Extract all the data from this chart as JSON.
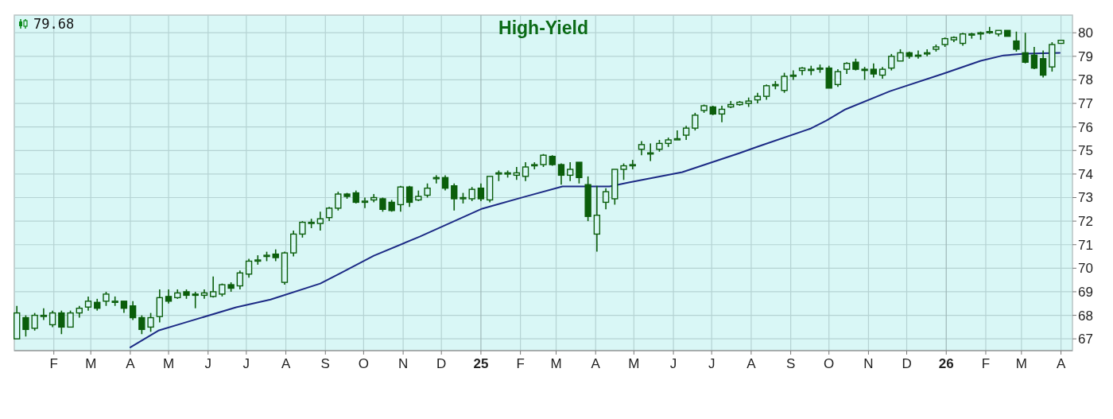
{
  "chart_data": {
    "type": "candlestick",
    "title": "High-Yield",
    "annotations": [
      "79.68"
    ],
    "color": "#0b5e0b",
    "grid": true,
    "xlim": [
      "2024-01-01",
      "2026-04-10"
    ],
    "ylim": [
      66.5,
      80.75
    ],
    "yticks": [
      67,
      68,
      69,
      70,
      71,
      72,
      73,
      74,
      75,
      76,
      77,
      78,
      79,
      80
    ],
    "xticks": [
      {
        "value": "2024-02",
        "label": "F"
      },
      {
        "value": "2024-03",
        "label": "M"
      },
      {
        "value": "2024-04",
        "label": "A"
      },
      {
        "value": "2024-05",
        "label": "M"
      },
      {
        "value": "2024-06",
        "label": "J"
      },
      {
        "value": "2024-07",
        "label": "J"
      },
      {
        "value": "2024-08",
        "label": "A"
      },
      {
        "value": "2024-09",
        "label": "S"
      },
      {
        "value": "2024-10",
        "label": "O"
      },
      {
        "value": "2024-11",
        "label": "N"
      },
      {
        "value": "2024-12",
        "label": "D"
      },
      {
        "value": "2025-01",
        "label": "25"
      },
      {
        "value": "2025-02",
        "label": "F"
      },
      {
        "value": "2025-03",
        "label": "M"
      },
      {
        "value": "2025-04",
        "label": "A"
      },
      {
        "value": "2025-05",
        "label": "M"
      },
      {
        "value": "2025-06",
        "label": "J"
      },
      {
        "value": "2025-07",
        "label": "J"
      },
      {
        "value": "2025-08",
        "label": "A"
      },
      {
        "value": "2025-09",
        "label": "S"
      },
      {
        "value": "2025-10",
        "label": "O"
      },
      {
        "value": "2025-11",
        "label": "N"
      },
      {
        "value": "2025-12",
        "label": "D"
      },
      {
        "value": "2026-01",
        "label": "26"
      },
      {
        "value": "2026-02",
        "label": "F"
      },
      {
        "value": "2026-03",
        "label": "M"
      },
      {
        "value": "2026-04",
        "label": "A"
      }
    ],
    "x": [
      "2024-01-03",
      "2024-01-10",
      "2024-01-17",
      "2024-01-24",
      "2024-01-31",
      "2024-02-07",
      "2024-02-14",
      "2024-02-21",
      "2024-02-28",
      "2024-03-06",
      "2024-03-13",
      "2024-03-20",
      "2024-03-27",
      "2024-04-03",
      "2024-04-10",
      "2024-04-17",
      "2024-04-24",
      "2024-05-01",
      "2024-05-08",
      "2024-05-15",
      "2024-05-22",
      "2024-05-29",
      "2024-06-05",
      "2024-06-12",
      "2024-06-19",
      "2024-06-26",
      "2024-07-03",
      "2024-07-10",
      "2024-07-17",
      "2024-07-24",
      "2024-07-31",
      "2024-08-07",
      "2024-08-14",
      "2024-08-21",
      "2024-08-28",
      "2024-09-04",
      "2024-09-11",
      "2024-09-18",
      "2024-09-25",
      "2024-10-02",
      "2024-10-09",
      "2024-10-16",
      "2024-10-23",
      "2024-10-30",
      "2024-11-06",
      "2024-11-13",
      "2024-11-20",
      "2024-11-27",
      "2024-12-04",
      "2024-12-11",
      "2024-12-18",
      "2024-12-25",
      "2025-01-01",
      "2025-01-08",
      "2025-01-15",
      "2025-01-22",
      "2025-01-29",
      "2025-02-05",
      "2025-02-12",
      "2025-02-19",
      "2025-02-26",
      "2025-03-05",
      "2025-03-12",
      "2025-03-19",
      "2025-03-26",
      "2025-04-02",
      "2025-04-09",
      "2025-04-16",
      "2025-04-23",
      "2025-04-30",
      "2025-05-07",
      "2025-05-14",
      "2025-05-21",
      "2025-05-28",
      "2025-06-04",
      "2025-06-11",
      "2025-06-18",
      "2025-06-25",
      "2025-07-02",
      "2025-07-09",
      "2025-07-16",
      "2025-07-23",
      "2025-07-30",
      "2025-08-06",
      "2025-08-13",
      "2025-08-20",
      "2025-08-27",
      "2025-09-03",
      "2025-09-10",
      "2025-09-17",
      "2025-09-24",
      "2025-10-01",
      "2025-10-08",
      "2025-10-15",
      "2025-10-22",
      "2025-10-29",
      "2025-11-05",
      "2025-11-12",
      "2025-11-19",
      "2025-11-26",
      "2025-12-03",
      "2025-12-10",
      "2025-12-17",
      "2025-12-24",
      "2025-12-31",
      "2026-01-07",
      "2026-01-14",
      "2026-01-21",
      "2026-01-28",
      "2026-02-04",
      "2026-02-11",
      "2026-02-18",
      "2026-02-25",
      "2026-03-04",
      "2026-03-11",
      "2026-03-18",
      "2026-03-25",
      "2026-04-01"
    ],
    "ohlc": [
      [
        67.0,
        68.4,
        67.0,
        68.1
      ],
      [
        67.9,
        68.0,
        67.1,
        67.4
      ],
      [
        67.45,
        68.1,
        67.35,
        68.0
      ],
      [
        68.0,
        68.3,
        67.8,
        68.0
      ],
      [
        67.6,
        68.2,
        67.5,
        68.1
      ],
      [
        68.1,
        68.2,
        67.2,
        67.5
      ],
      [
        67.5,
        68.2,
        67.5,
        68.1
      ],
      [
        68.1,
        68.4,
        67.9,
        68.3
      ],
      [
        68.35,
        68.8,
        68.2,
        68.6
      ],
      [
        68.55,
        68.7,
        68.2,
        68.3
      ],
      [
        68.6,
        69.0,
        68.4,
        68.9
      ],
      [
        68.55,
        68.8,
        68.4,
        68.6
      ],
      [
        68.6,
        68.6,
        68.1,
        68.3
      ],
      [
        68.4,
        68.6,
        67.8,
        67.9
      ],
      [
        67.9,
        68.0,
        67.2,
        67.4
      ],
      [
        67.5,
        68.1,
        67.3,
        67.9
      ],
      [
        67.95,
        69.1,
        67.7,
        68.75
      ],
      [
        68.8,
        69.1,
        68.5,
        68.6
      ],
      [
        68.75,
        69.1,
        68.7,
        68.95
      ],
      [
        69.0,
        69.1,
        68.7,
        68.85
      ],
      [
        68.9,
        69.0,
        68.3,
        68.85
      ],
      [
        68.85,
        69.1,
        68.7,
        68.95
      ],
      [
        68.8,
        69.65,
        68.75,
        69.0
      ],
      [
        68.9,
        69.35,
        68.8,
        69.3
      ],
      [
        69.3,
        69.4,
        69.0,
        69.15
      ],
      [
        69.25,
        69.9,
        69.1,
        69.8
      ],
      [
        69.75,
        70.4,
        69.6,
        70.3
      ],
      [
        70.3,
        70.55,
        70.15,
        70.35
      ],
      [
        70.5,
        70.7,
        70.3,
        70.55
      ],
      [
        70.6,
        70.8,
        70.3,
        70.45
      ],
      [
        69.4,
        70.7,
        69.3,
        70.65
      ],
      [
        70.65,
        71.6,
        70.5,
        71.45
      ],
      [
        71.45,
        72.0,
        71.3,
        71.95
      ],
      [
        71.95,
        72.1,
        71.7,
        71.95
      ],
      [
        71.9,
        72.4,
        71.6,
        72.1
      ],
      [
        72.15,
        72.6,
        72.0,
        72.55
      ],
      [
        72.55,
        73.25,
        72.45,
        73.15
      ],
      [
        73.15,
        73.2,
        72.95,
        73.05
      ],
      [
        73.2,
        73.3,
        72.75,
        72.8
      ],
      [
        72.85,
        73.0,
        72.55,
        72.85
      ],
      [
        72.9,
        73.15,
        72.8,
        73.0
      ],
      [
        72.95,
        73.0,
        72.4,
        72.5
      ],
      [
        72.8,
        72.9,
        72.4,
        72.45
      ],
      [
        72.7,
        73.5,
        72.4,
        73.45
      ],
      [
        73.45,
        73.5,
        72.6,
        72.8
      ],
      [
        72.9,
        73.3,
        72.85,
        73.05
      ],
      [
        73.1,
        73.6,
        73.0,
        73.4
      ],
      [
        73.85,
        73.95,
        73.6,
        73.85
      ],
      [
        73.85,
        73.95,
        73.3,
        73.4
      ],
      [
        73.5,
        73.6,
        72.45,
        72.95
      ],
      [
        72.95,
        73.2,
        72.75,
        73.0
      ],
      [
        72.95,
        73.45,
        72.85,
        73.35
      ],
      [
        73.4,
        73.6,
        72.85,
        72.95
      ],
      [
        72.9,
        73.9,
        72.8,
        73.9
      ],
      [
        74.0,
        74.15,
        73.7,
        74.05
      ],
      [
        74.05,
        74.15,
        73.85,
        74.05
      ],
      [
        73.95,
        74.3,
        73.75,
        74.05
      ],
      [
        73.9,
        74.5,
        73.7,
        74.3
      ],
      [
        74.35,
        74.5,
        74.2,
        74.4
      ],
      [
        74.4,
        74.85,
        74.3,
        74.8
      ],
      [
        74.75,
        74.8,
        74.35,
        74.4
      ],
      [
        74.4,
        74.45,
        73.55,
        73.95
      ],
      [
        73.95,
        74.5,
        73.7,
        74.2
      ],
      [
        74.5,
        74.5,
        73.6,
        73.85
      ],
      [
        73.55,
        73.9,
        72.0,
        72.2
      ],
      [
        71.45,
        73.5,
        70.7,
        72.25
      ],
      [
        72.8,
        73.4,
        72.5,
        73.25
      ],
      [
        72.95,
        74.2,
        72.7,
        74.2
      ],
      [
        74.2,
        74.45,
        73.75,
        74.35
      ],
      [
        74.35,
        74.6,
        74.2,
        74.4
      ],
      [
        75.05,
        75.4,
        74.8,
        75.25
      ],
      [
        74.9,
        75.3,
        74.55,
        74.9
      ],
      [
        75.05,
        75.45,
        74.95,
        75.3
      ],
      [
        75.3,
        75.55,
        75.15,
        75.45
      ],
      [
        75.5,
        75.85,
        75.45,
        75.5
      ],
      [
        75.65,
        76.05,
        75.45,
        75.95
      ],
      [
        75.95,
        76.6,
        75.85,
        76.5
      ],
      [
        76.7,
        76.95,
        76.6,
        76.9
      ],
      [
        76.85,
        76.9,
        76.5,
        76.55
      ],
      [
        76.55,
        76.9,
        76.2,
        76.75
      ],
      [
        76.85,
        77.1,
        76.8,
        76.95
      ],
      [
        76.95,
        77.1,
        76.9,
        77.05
      ],
      [
        77.0,
        77.25,
        76.85,
        77.1
      ],
      [
        77.15,
        77.45,
        77.0,
        77.3
      ],
      [
        77.3,
        77.8,
        77.15,
        77.75
      ],
      [
        77.75,
        77.95,
        77.6,
        77.8
      ],
      [
        77.55,
        78.3,
        77.45,
        78.15
      ],
      [
        78.2,
        78.4,
        78.0,
        78.2
      ],
      [
        78.4,
        78.55,
        78.2,
        78.5
      ],
      [
        78.45,
        78.6,
        78.2,
        78.45
      ],
      [
        78.45,
        78.65,
        78.3,
        78.5
      ],
      [
        78.5,
        78.6,
        77.65,
        77.65
      ],
      [
        77.8,
        78.45,
        77.7,
        78.35
      ],
      [
        78.45,
        78.75,
        78.25,
        78.7
      ],
      [
        78.75,
        78.9,
        78.4,
        78.45
      ],
      [
        78.45,
        78.55,
        78.0,
        78.4
      ],
      [
        78.45,
        78.7,
        78.1,
        78.25
      ],
      [
        78.2,
        78.55,
        78.05,
        78.45
      ],
      [
        78.5,
        79.1,
        78.4,
        79.0
      ],
      [
        78.8,
        79.3,
        78.8,
        79.15
      ],
      [
        79.15,
        79.2,
        78.9,
        79.0
      ],
      [
        79.05,
        79.25,
        78.9,
        79.05
      ],
      [
        79.15,
        79.3,
        79.0,
        79.15
      ],
      [
        79.3,
        79.5,
        79.2,
        79.4
      ],
      [
        79.5,
        79.8,
        79.4,
        79.75
      ],
      [
        79.7,
        79.85,
        79.6,
        79.8
      ],
      [
        79.55,
        80.0,
        79.45,
        79.95
      ],
      [
        79.95,
        80.0,
        79.75,
        79.95
      ],
      [
        79.95,
        80.05,
        79.7,
        80.0
      ],
      [
        80.0,
        80.25,
        79.95,
        80.05
      ],
      [
        79.95,
        80.1,
        79.85,
        80.1
      ],
      [
        80.1,
        80.1,
        79.85,
        79.85
      ],
      [
        79.65,
        80.05,
        79.2,
        79.3
      ],
      [
        79.15,
        80.0,
        78.7,
        78.75
      ],
      [
        79.05,
        79.4,
        78.45,
        78.5
      ],
      [
        78.9,
        79.25,
        78.1,
        78.2
      ],
      [
        78.55,
        79.6,
        78.35,
        79.5
      ],
      [
        79.55,
        79.7,
        79.55,
        79.68
      ]
    ],
    "series": [
      {
        "type": "line",
        "color": "#1c2a85",
        "x": [
          "2024-04-01",
          "2024-04-23",
          "2024-05-12",
          "2024-06-23",
          "2024-07-20",
          "2024-08-28",
          "2024-09-14",
          "2024-10-09",
          "2024-11-14",
          "2025-01-02",
          "2025-02-04",
          "2025-03-06",
          "2025-04-12",
          "2025-04-27",
          "2025-06-08",
          "2025-07-23",
          "2025-08-06",
          "2025-09-17",
          "2025-09-29",
          "2025-10-14",
          "2025-11-18",
          "2025-12-30",
          "2026-01-28",
          "2026-02-15",
          "2026-03-04",
          "2026-03-31"
        ],
        "values": [
          66.64,
          67.35,
          67.66,
          68.34,
          68.67,
          69.35,
          69.82,
          70.53,
          71.34,
          72.53,
          73.03,
          73.47,
          73.47,
          73.64,
          74.08,
          74.89,
          75.16,
          75.94,
          76.27,
          76.75,
          77.52,
          78.27,
          78.81,
          79.04,
          79.11,
          79.15
        ]
      }
    ]
  }
}
